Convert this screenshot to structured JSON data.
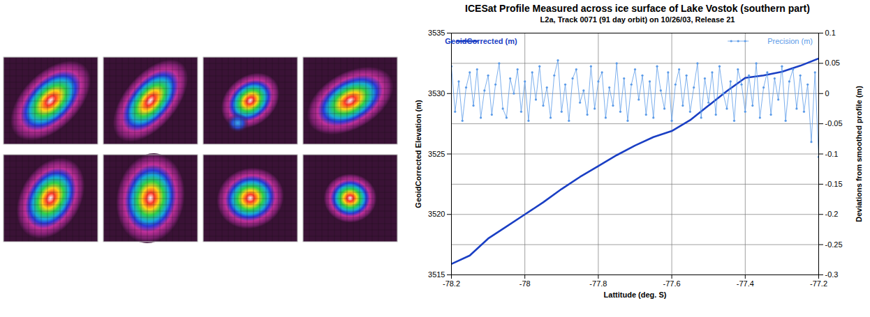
{
  "chart_data": {
    "type": "line",
    "title": "ICESat Profile Measured across ice surface of Lake Vostok (southern part)",
    "subtitle": "L2a, Track 0071 (91 day orbit) on 10/26/03, Release 21",
    "x_label": "Lattitude (deg. S)",
    "y_label": "GeoidCorrected Elevation (m)",
    "y2_label": "Deviations from smoothed profile (m)",
    "xlim": [
      -78.2,
      -77.2
    ],
    "xticks": [
      -78.2,
      -78,
      -77.8,
      -77.6,
      -77.4,
      -77.2
    ],
    "ylim": [
      3515,
      3535
    ],
    "yticks": [
      3515,
      3520,
      3525,
      3530,
      3535
    ],
    "y2lim": [
      -0.3,
      0.1
    ],
    "y2ticks": [
      -0.3,
      -0.25,
      -0.2,
      -0.15,
      -0.1,
      -0.05,
      0,
      0.05,
      0.1
    ],
    "grid": true,
    "legend": "top",
    "series": [
      {
        "name": "GeoidCorrected (m)",
        "color": "#1a3fc4",
        "line_style": "solid",
        "x": [
          -78.2,
          -78.15,
          -78.1,
          -78.05,
          -78,
          -77.95,
          -77.9,
          -77.85,
          -77.8,
          -77.75,
          -77.7,
          -77.65,
          -77.6,
          -77.55,
          -77.5,
          -77.45,
          -77.4,
          -77.35,
          -77.3,
          -77.25,
          -77.2
        ],
        "values": [
          3515.9,
          3516.6,
          3518,
          3519,
          3520,
          3521,
          3522.1,
          3523.1,
          3524,
          3524.9,
          3525.7,
          3526.4,
          3526.9,
          3527.8,
          3529,
          3530.2,
          3531.3,
          3531.5,
          3531.8,
          3532.3,
          3532.9
        ]
      },
      {
        "name": "Precision (m)",
        "color": "#5b9be8",
        "marker": "dot",
        "line_style": "solid",
        "axis": "y2",
        "x": [
          -78.2,
          -78.19,
          -78.18,
          -78.17,
          -78.16,
          -78.15,
          -78.14,
          -78.13,
          -78.12,
          -78.11,
          -78.1,
          -78.09,
          -78.08,
          -78.07,
          -78.06,
          -78.05,
          -78.04,
          -78.03,
          -78.02,
          -78.01,
          -78,
          -77.99,
          -77.98,
          -77.97,
          -77.96,
          -77.95,
          -77.94,
          -77.93,
          -77.92,
          -77.91,
          -77.9,
          -77.89,
          -77.88,
          -77.87,
          -77.86,
          -77.85,
          -77.84,
          -77.83,
          -77.82,
          -77.81,
          -77.8,
          -77.79,
          -77.78,
          -77.77,
          -77.76,
          -77.75,
          -77.74,
          -77.73,
          -77.72,
          -77.71,
          -77.7,
          -77.69,
          -77.68,
          -77.67,
          -77.66,
          -77.65,
          -77.64,
          -77.63,
          -77.62,
          -77.61,
          -77.6,
          -77.59,
          -77.58,
          -77.57,
          -77.56,
          -77.55,
          -77.54,
          -77.53,
          -77.52,
          -77.51,
          -77.5,
          -77.49,
          -77.48,
          -77.47,
          -77.46,
          -77.45,
          -77.44,
          -77.43,
          -77.42,
          -77.41,
          -77.4,
          -77.39,
          -77.38,
          -77.37,
          -77.36,
          -77.35,
          -77.34,
          -77.33,
          -77.32,
          -77.31,
          -77.3,
          -77.29,
          -77.28,
          -77.27,
          -77.26,
          -77.25,
          -77.24,
          -77.23,
          -77.22,
          -77.21,
          -77.2
        ],
        "values": [
          0.045,
          -0.03,
          0.02,
          -0.045,
          0.01,
          0.035,
          -0.02,
          0.04,
          -0.04,
          0.005,
          0.03,
          -0.035,
          0.015,
          0.05,
          -0.025,
          -0.04,
          0.025,
          0,
          0.04,
          -0.03,
          0.02,
          -0.045,
          0.035,
          -0.01,
          0.045,
          -0.02,
          0.01,
          -0.04,
          0.03,
          0.055,
          -0.03,
          0.015,
          -0.045,
          0.025,
          0.04,
          -0.015,
          0.005,
          -0.035,
          0.045,
          -0.025,
          0.02,
          0.035,
          -0.04,
          0.01,
          -0.02,
          0.05,
          -0.03,
          0.025,
          -0.045,
          0.015,
          0.04,
          -0.01,
          0.03,
          -0.035,
          0.02,
          -0.04,
          0.045,
          0.005,
          -0.025,
          0.035,
          -0.045,
          0.015,
          0.04,
          -0.02,
          0.03,
          -0.03,
          0.01,
          0.05,
          -0.04,
          0.025,
          -0.015,
          0.035,
          -0.035,
          0.045,
          0,
          -0.025,
          0.02,
          -0.045,
          0.04,
          0.015,
          -0.03,
          0.03,
          -0.02,
          0.05,
          -0.04,
          0.01,
          0.035,
          -0.035,
          0.025,
          -0.01,
          0.045,
          -0.045,
          0.02,
          0.04,
          -0.025,
          0.03,
          -0.03,
          0.015,
          -0.08,
          0.035,
          -0.105
        ]
      }
    ]
  }
}
